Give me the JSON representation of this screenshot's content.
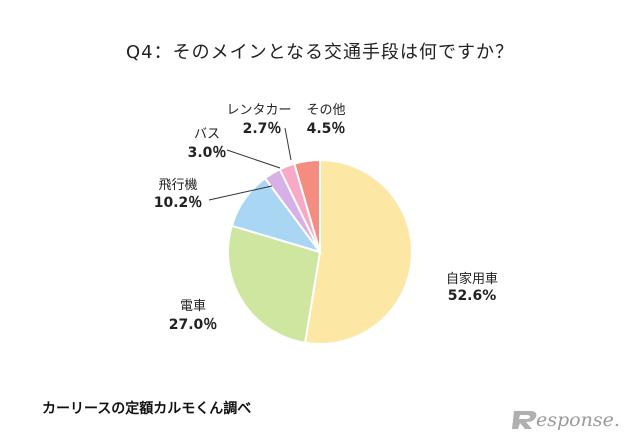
{
  "title": "Q4：そのメインとなる交通手段は何ですか？",
  "source": "カーリースの定額カルモくん調べ",
  "logo": "esponse.",
  "chart_data": {
    "type": "pie",
    "title": "Q4：そのメインとなる交通手段は何ですか？",
    "start": "12 o'clock, clockwise",
    "slices": [
      {
        "label": "自家用車",
        "value": 52.6,
        "display": "52.6%",
        "color": "#fde7a4"
      },
      {
        "label": "電車",
        "value": 27.0,
        "display": "27.0％",
        "color": "#cfe6a0"
      },
      {
        "label": "飛行機",
        "value": 10.2,
        "display": "10.2％",
        "color": "#a9d6f2"
      },
      {
        "label": "バス",
        "value": 3.0,
        "display": "3.0％",
        "color": "#d8b0e8"
      },
      {
        "label": "レンタカー",
        "value": 2.7,
        "display": "2.7％",
        "color": "#f7a9c6"
      },
      {
        "label": "その他",
        "value": 4.5,
        "display": "4.5％",
        "color": "#f48c7f"
      }
    ]
  }
}
